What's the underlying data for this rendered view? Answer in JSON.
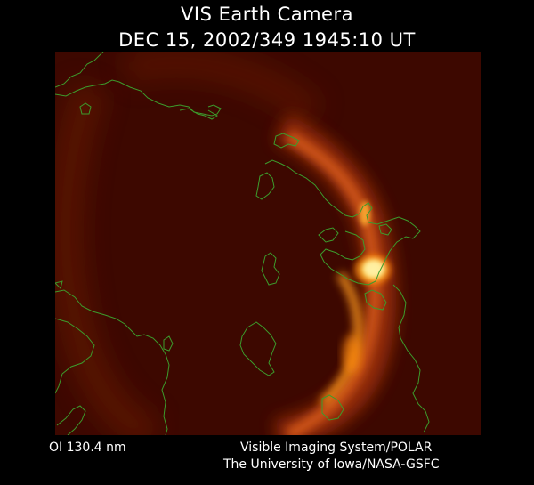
{
  "header": {
    "title": "VIS Earth Camera",
    "timestamp": "DEC 15, 2002/349 1945:10 UT"
  },
  "image": {
    "background_color": "#3d0800",
    "aurora_colors": [
      "#ffe066",
      "#ff9a1a",
      "#a83408"
    ],
    "coastline_color": "#3c9c2c"
  },
  "footer": {
    "filter": "OI  130.4 nm",
    "credit_line_1": "Visible Imaging System/POLAR",
    "credit_line_2": "The University of Iowa/NASA-GSFC"
  }
}
